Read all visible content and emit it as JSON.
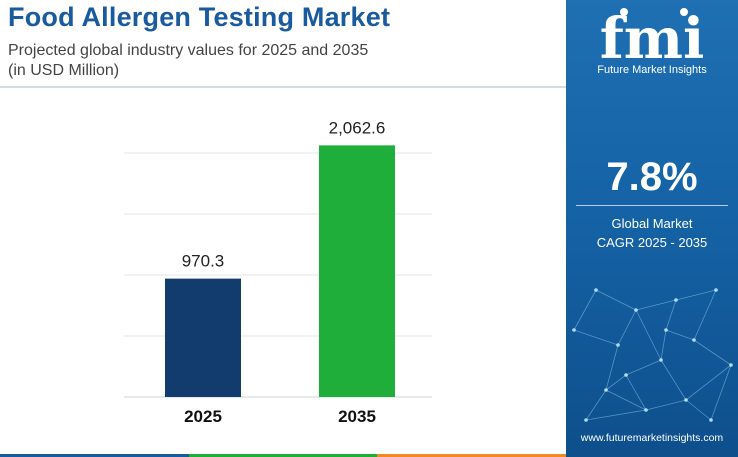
{
  "header": {
    "title": "Food Allergen Testing Market",
    "subtitle_line1": "Projected global industry values for 2025 and 2035",
    "subtitle_line2": "(in USD Million)"
  },
  "brand": {
    "logo_text": "fmi",
    "name": "Future Market Insights",
    "website": "www.futuremarketinsights.com"
  },
  "cagr": {
    "value": "7.8%",
    "label_line1": "Global Market",
    "label_line2": "CAGR 2025 - 2035"
  },
  "colors": {
    "title": "#1a5a9e",
    "bar_2025": "#123b6e",
    "bar_2035": "#1fae3a",
    "panel": "#1563a6"
  },
  "chart_data": {
    "type": "bar",
    "title": "Food Allergen Testing Market",
    "categories": [
      "2025",
      "2035"
    ],
    "values": [
      970.3,
      2062.6
    ],
    "value_labels": [
      "970.3",
      "2,062.6"
    ],
    "bar_colors": [
      "#123b6e",
      "#1fae3a"
    ],
    "ylim": [
      0,
      2500
    ],
    "grid": true,
    "legend": "none",
    "xlabel": "",
    "ylabel": ""
  }
}
